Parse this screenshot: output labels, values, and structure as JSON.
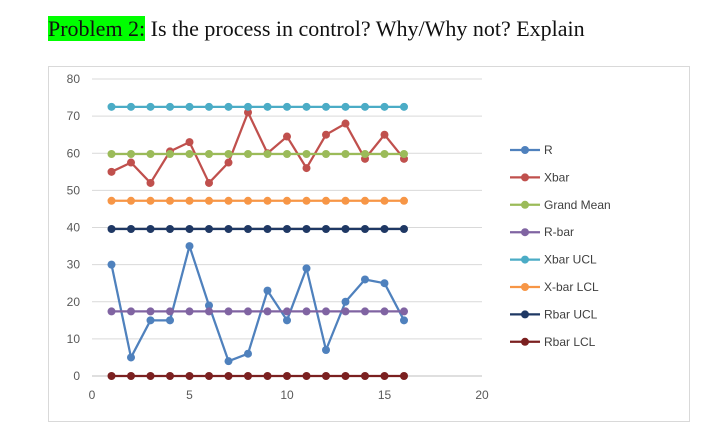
{
  "header": {
    "label": "Problem 2:",
    "question": " Is the process in control? Why/Why not? Explain"
  },
  "chart_data": {
    "type": "line",
    "x": [
      1,
      2,
      3,
      4,
      5,
      6,
      7,
      8,
      9,
      10,
      11,
      12,
      13,
      14,
      15,
      16
    ],
    "xlim": [
      0,
      20
    ],
    "ylim": [
      0,
      80
    ],
    "xticks": [
      "0",
      "5",
      "10",
      "15",
      "20"
    ],
    "yticks": [
      "0",
      "10",
      "20",
      "30",
      "40",
      "50",
      "60",
      "70",
      "80"
    ],
    "grid": "horizontal",
    "legend_position": "right",
    "series": [
      {
        "name": "R",
        "color": "#4f81bd",
        "values": [
          30,
          5,
          15,
          15,
          35,
          19,
          4,
          6,
          23,
          15,
          29,
          7,
          20,
          26,
          25,
          15
        ]
      },
      {
        "name": "Xbar",
        "color": "#c0504d",
        "values": [
          55,
          57.5,
          52,
          60.5,
          63,
          52,
          57.5,
          71,
          60,
          64.5,
          56,
          65,
          68,
          58.5,
          65,
          58.5
        ]
      },
      {
        "name": "Grand Mean",
        "color": "#9bbb59",
        "values": [
          59.8,
          59.8,
          59.8,
          59.8,
          59.8,
          59.8,
          59.8,
          59.8,
          59.8,
          59.8,
          59.8,
          59.8,
          59.8,
          59.8,
          59.8,
          59.8
        ]
      },
      {
        "name": "R-bar",
        "color": "#8064a2",
        "values": [
          17.4,
          17.4,
          17.4,
          17.4,
          17.4,
          17.4,
          17.4,
          17.4,
          17.4,
          17.4,
          17.4,
          17.4,
          17.4,
          17.4,
          17.4,
          17.4
        ]
      },
      {
        "name": "Xbar UCL",
        "color": "#4bacc6",
        "values": [
          72.5,
          72.5,
          72.5,
          72.5,
          72.5,
          72.5,
          72.5,
          72.5,
          72.5,
          72.5,
          72.5,
          72.5,
          72.5,
          72.5,
          72.5,
          72.5
        ]
      },
      {
        "name": "X-bar LCL",
        "color": "#f79646",
        "values": [
          47.2,
          47.2,
          47.2,
          47.2,
          47.2,
          47.2,
          47.2,
          47.2,
          47.2,
          47.2,
          47.2,
          47.2,
          47.2,
          47.2,
          47.2,
          47.2
        ]
      },
      {
        "name": "Rbar UCL",
        "color": "#1f3864",
        "values": [
          39.6,
          39.6,
          39.6,
          39.6,
          39.6,
          39.6,
          39.6,
          39.6,
          39.6,
          39.6,
          39.6,
          39.6,
          39.6,
          39.6,
          39.6,
          39.6
        ]
      },
      {
        "name": "Rbar LCL",
        "color": "#7b2020",
        "values": [
          0,
          0,
          0,
          0,
          0,
          0,
          0,
          0,
          0,
          0,
          0,
          0,
          0,
          0,
          0,
          0
        ]
      }
    ]
  }
}
